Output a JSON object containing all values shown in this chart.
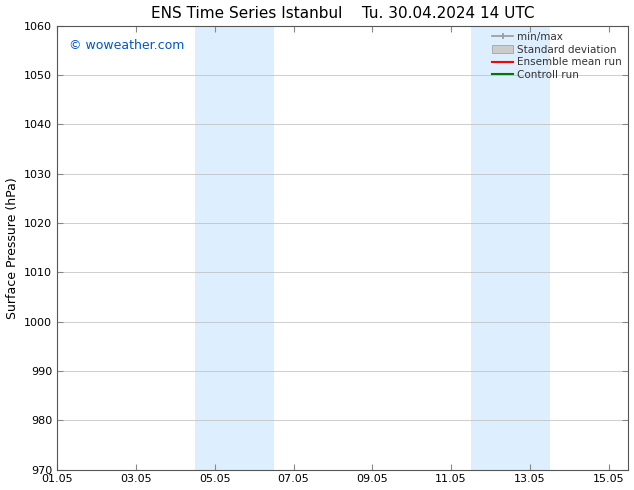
{
  "title_left": "ENS Time Series Istanbul",
  "title_right": "Tu. 30.04.2024 14 UTC",
  "ylabel": "Surface Pressure (hPa)",
  "watermark": "© woweather.com",
  "watermark_color": "#0055cc",
  "xlim_start": 0,
  "xlim_end": 14.5,
  "ylim": [
    970,
    1060
  ],
  "yticks": [
    970,
    980,
    990,
    1000,
    1010,
    1020,
    1030,
    1040,
    1050,
    1060
  ],
  "xtick_labels": [
    "01.05",
    "03.05",
    "05.05",
    "07.05",
    "09.05",
    "11.05",
    "13.05",
    "15.05"
  ],
  "xtick_positions": [
    0,
    2,
    4,
    6,
    8,
    10,
    12,
    14
  ],
  "shaded_bands": [
    {
      "x_start": 3.5,
      "x_end": 5.5
    },
    {
      "x_start": 10.5,
      "x_end": 12.5
    }
  ],
  "shaded_color": "#ddeeff",
  "background_color": "#ffffff",
  "grid_color": "#bbbbbb",
  "legend_entries": [
    {
      "label": "min/max",
      "color": "#999999",
      "style": "minmax"
    },
    {
      "label": "Standard deviation",
      "color": "#cccccc",
      "style": "stddev"
    },
    {
      "label": "Ensemble mean run",
      "color": "#ff0000",
      "style": "line"
    },
    {
      "label": "Controll run",
      "color": "#007700",
      "style": "line"
    }
  ],
  "title_fontsize": 11,
  "axis_label_fontsize": 9,
  "tick_fontsize": 8,
  "legend_fontsize": 7.5,
  "watermark_fontsize": 9
}
